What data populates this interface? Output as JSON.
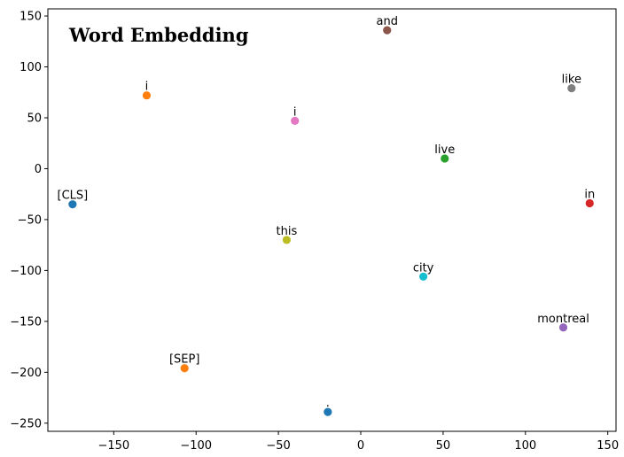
{
  "chart_data": {
    "type": "scatter",
    "title": "Word Embedding",
    "xlabel": "",
    "ylabel": "",
    "xlim": [
      -190,
      155
    ],
    "ylim": [
      -258,
      157
    ],
    "xticks": [
      -150,
      -100,
      -50,
      0,
      50,
      100,
      150
    ],
    "yticks": [
      -250,
      -200,
      -150,
      -100,
      -50,
      0,
      50,
      100,
      150
    ],
    "grid": false,
    "points": [
      {
        "label": "[CLS]",
        "x": -175,
        "y": -35,
        "color": "#1f77b4"
      },
      {
        "label": "i",
        "x": -130,
        "y": 72,
        "color": "#ff7f0e"
      },
      {
        "label": "and",
        "x": 16,
        "y": 136,
        "color": "#8c564b"
      },
      {
        "label": "i",
        "x": -40,
        "y": 47,
        "color": "#e377c2"
      },
      {
        "label": "like",
        "x": 128,
        "y": 79,
        "color": "#7f7f7f"
      },
      {
        "label": "live",
        "x": 51,
        "y": 10,
        "color": "#2ca02c"
      },
      {
        "label": "in",
        "x": 139,
        "y": -34,
        "color": "#d62728"
      },
      {
        "label": "this",
        "x": -45,
        "y": -70,
        "color": "#bcbd22"
      },
      {
        "label": "city",
        "x": 38,
        "y": -106,
        "color": "#17becf"
      },
      {
        "label": "montreal",
        "x": 123,
        "y": -156,
        "color": "#9467bd"
      },
      {
        "label": "[SEP]",
        "x": -107,
        "y": -196,
        "color": "#ff7f0e"
      },
      {
        "label": ".",
        "x": -20,
        "y": -239,
        "color": "#1f77b4"
      }
    ]
  }
}
